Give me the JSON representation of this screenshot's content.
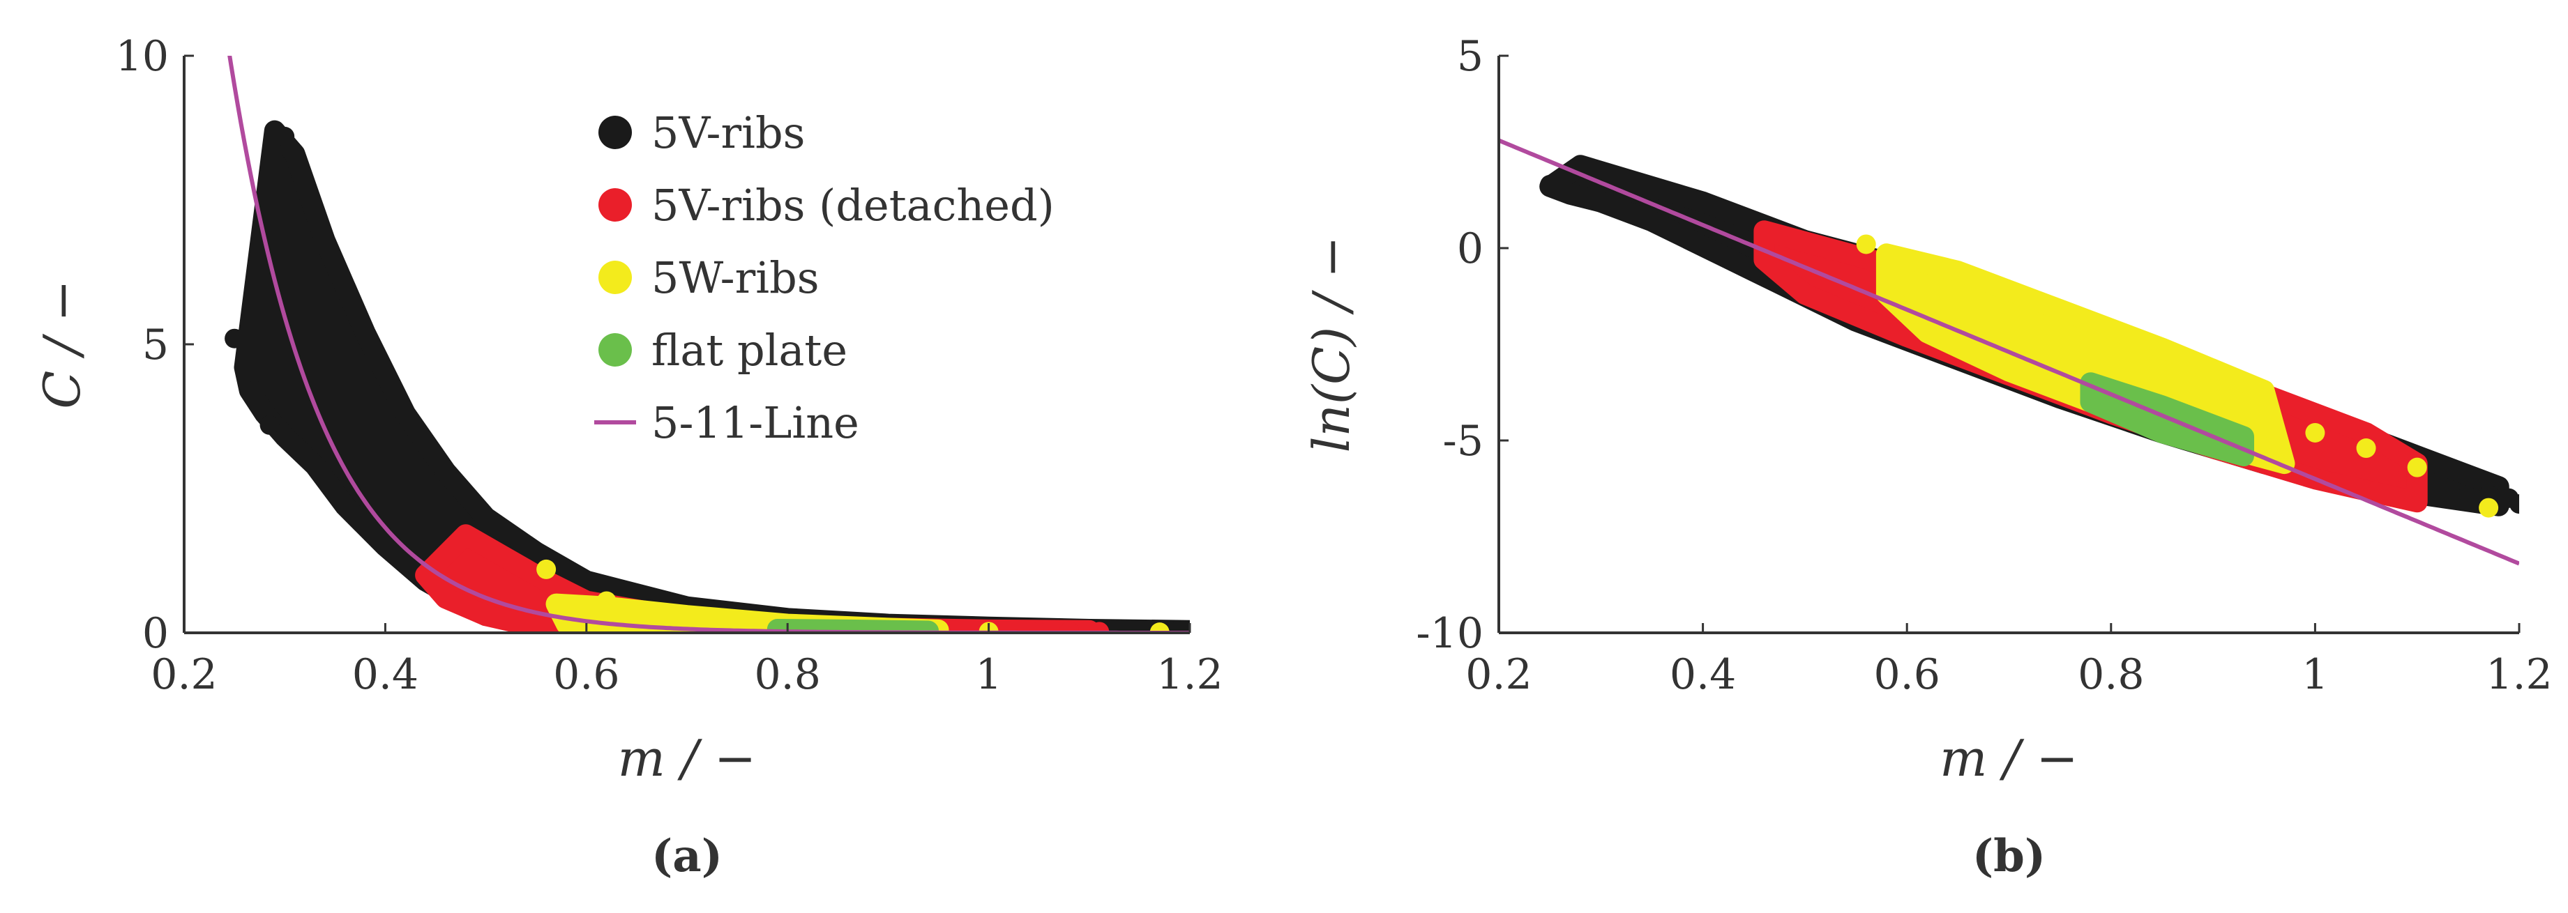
{
  "colors": {
    "black_series": "#1a1a1a",
    "red_series": "#ea1f2a",
    "yellow_series": "#f3eb1c",
    "green_series": "#6abf4b",
    "fit_line": "#b14a9e",
    "axis": "#333333"
  },
  "chart_data": [
    {
      "id": "a",
      "type": "scatter",
      "caption": "(a)",
      "xlabel": "m / −",
      "ylabel": "C / −",
      "xlim": [
        0.2,
        1.2
      ],
      "ylim": [
        0,
        10
      ],
      "x_ticks": [
        0.2,
        0.4,
        0.6,
        0.8,
        1.0,
        1.2
      ],
      "x_tick_labels": [
        "0.2",
        "0.4",
        "0.6",
        "0.8",
        "1",
        "1.2"
      ],
      "y_ticks": [
        0,
        5,
        10
      ],
      "y_tick_labels": [
        "0",
        "5",
        "10"
      ],
      "grid": false,
      "legend_placement": "top-right",
      "series": [
        {
          "name": "5V-ribs",
          "color": "#1a1a1a",
          "marker": "circle",
          "band_upper": [
            [
              0.29,
              8.7
            ],
            [
              0.31,
              8.3
            ],
            [
              0.34,
              6.8
            ],
            [
              0.38,
              5.2
            ],
            [
              0.42,
              3.8
            ],
            [
              0.46,
              2.8
            ],
            [
              0.5,
              2.0
            ],
            [
              0.55,
              1.4
            ],
            [
              0.6,
              0.9
            ],
            [
              0.7,
              0.45
            ],
            [
              0.8,
              0.25
            ],
            [
              0.9,
              0.15
            ],
            [
              1.0,
              0.1
            ],
            [
              1.1,
              0.06
            ],
            [
              1.2,
              0.04
            ]
          ],
          "band_lower": [
            [
              1.2,
              0.0
            ],
            [
              1.0,
              0.0
            ],
            [
              0.8,
              0.0
            ],
            [
              0.6,
              0.05
            ],
            [
              0.5,
              0.3
            ],
            [
              0.44,
              0.9
            ],
            [
              0.4,
              1.5
            ],
            [
              0.36,
              2.2
            ],
            [
              0.33,
              2.9
            ],
            [
              0.3,
              3.4
            ],
            [
              0.28,
              3.8
            ],
            [
              0.265,
              4.2
            ],
            [
              0.26,
              4.6
            ]
          ],
          "points": [
            [
              0.25,
              5.1
            ],
            [
              0.27,
              4.2
            ],
            [
              0.285,
              3.6
            ],
            [
              0.3,
              8.6
            ],
            [
              1.2,
              0.01
            ],
            [
              1.18,
              0.02
            ],
            [
              1.15,
              0.02
            ]
          ]
        },
        {
          "name": "5V-ribs (detached)",
          "color": "#ea1f2a",
          "marker": "circle",
          "band_upper": [
            [
              0.44,
              1.0
            ],
            [
              0.48,
              1.7
            ],
            [
              0.52,
              1.3
            ],
            [
              0.56,
              0.9
            ],
            [
              0.6,
              0.55
            ],
            [
              0.7,
              0.25
            ],
            [
              0.8,
              0.12
            ],
            [
              0.9,
              0.08
            ],
            [
              1.0,
              0.05
            ],
            [
              1.1,
              0.04
            ]
          ],
          "band_lower": [
            [
              1.1,
              0.0
            ],
            [
              1.0,
              0.0
            ],
            [
              0.8,
              0.0
            ],
            [
              0.6,
              0.02
            ],
            [
              0.55,
              0.1
            ],
            [
              0.5,
              0.3
            ],
            [
              0.46,
              0.6
            ]
          ],
          "points": [
            [
              1.05,
              0.02
            ],
            [
              1.08,
              0.03
            ],
            [
              1.11,
              0.02
            ]
          ]
        },
        {
          "name": "5W-ribs",
          "color": "#f3eb1c",
          "marker": "circle",
          "band_upper": [
            [
              0.57,
              0.5
            ],
            [
              0.62,
              0.45
            ],
            [
              0.7,
              0.3
            ],
            [
              0.8,
              0.15
            ],
            [
              0.9,
              0.08
            ],
            [
              0.95,
              0.05
            ]
          ],
          "band_lower": [
            [
              0.95,
              0.0
            ],
            [
              0.85,
              0.0
            ],
            [
              0.75,
              0.02
            ],
            [
              0.65,
              0.05
            ],
            [
              0.58,
              0.15
            ]
          ],
          "points": [
            [
              0.56,
              1.1
            ],
            [
              0.62,
              0.55
            ],
            [
              1.0,
              0.02
            ],
            [
              1.17,
              0.01
            ]
          ]
        },
        {
          "name": "flat plate",
          "color": "#6abf4b",
          "marker": "circle",
          "band_upper": [
            [
              0.79,
              0.06
            ],
            [
              0.86,
              0.05
            ],
            [
              0.94,
              0.03
            ]
          ],
          "band_lower": [
            [
              0.94,
              0.0
            ],
            [
              0.86,
              0.0
            ],
            [
              0.79,
              0.01
            ]
          ],
          "points": []
        },
        {
          "name": "5-11-Line",
          "color": "#b14a9e",
          "marker": "line",
          "formula": "C = exp(5 - 11 m)",
          "line_intercept": 5,
          "line_slope": -11
        }
      ]
    },
    {
      "id": "b",
      "type": "scatter",
      "caption": "(b)",
      "xlabel": "m / −",
      "ylabel": "ln(C) / −",
      "xlim": [
        0.2,
        1.2
      ],
      "ylim": [
        -10,
        5
      ],
      "x_ticks": [
        0.2,
        0.4,
        0.6,
        0.8,
        1.0,
        1.2
      ],
      "x_tick_labels": [
        "0.2",
        "0.4",
        "0.6",
        "0.8",
        "1",
        "1.2"
      ],
      "y_ticks": [
        -10,
        -5,
        0,
        5
      ],
      "y_tick_labels": [
        "-10",
        "-5",
        "0",
        "5"
      ],
      "grid": false,
      "series": [
        {
          "name": "5V-ribs",
          "color": "#1a1a1a",
          "marker": "circle",
          "band_upper": [
            [
              0.28,
              2.15
            ],
            [
              0.4,
              1.2
            ],
            [
              0.5,
              0.2
            ],
            [
              0.6,
              -0.5
            ],
            [
              0.7,
              -1.4
            ],
            [
              0.8,
              -2.4
            ],
            [
              0.9,
              -3.4
            ],
            [
              1.0,
              -4.4
            ],
            [
              1.1,
              -5.4
            ],
            [
              1.18,
              -6.2
            ]
          ],
          "band_lower": [
            [
              1.18,
              -6.7
            ],
            [
              1.05,
              -6.2
            ],
            [
              0.95,
              -5.6
            ],
            [
              0.85,
              -4.8
            ],
            [
              0.75,
              -3.9
            ],
            [
              0.65,
              -2.9
            ],
            [
              0.55,
              -1.9
            ],
            [
              0.45,
              -0.6
            ],
            [
              0.35,
              0.7
            ],
            [
              0.3,
              1.2
            ],
            [
              0.27,
              1.4
            ],
            [
              0.25,
              1.6
            ]
          ],
          "points": [
            [
              0.25,
              1.65
            ],
            [
              1.19,
              -6.5
            ],
            [
              1.2,
              -6.65
            ],
            [
              1.17,
              -6.4
            ]
          ]
        },
        {
          "name": "5V-ribs (detached)",
          "color": "#ea1f2a",
          "marker": "circle",
          "band_upper": [
            [
              0.46,
              0.45
            ],
            [
              0.55,
              -0.2
            ],
            [
              0.65,
              -0.9
            ],
            [
              0.75,
              -1.8
            ],
            [
              0.85,
              -2.8
            ],
            [
              0.95,
              -3.8
            ],
            [
              1.05,
              -4.8
            ],
            [
              1.1,
              -5.6
            ]
          ],
          "band_lower": [
            [
              1.1,
              -6.6
            ],
            [
              1.0,
              -6.0
            ],
            [
              0.9,
              -5.2
            ],
            [
              0.8,
              -4.3
            ],
            [
              0.7,
              -3.3
            ],
            [
              0.6,
              -2.3
            ],
            [
              0.5,
              -1.2
            ],
            [
              0.46,
              -0.3
            ]
          ],
          "points": []
        },
        {
          "name": "5W-ribs",
          "color": "#f3eb1c",
          "marker": "circle",
          "band_upper": [
            [
              0.58,
              -0.15
            ],
            [
              0.65,
              -0.6
            ],
            [
              0.75,
              -1.6
            ],
            [
              0.85,
              -2.6
            ],
            [
              0.95,
              -3.7
            ]
          ],
          "band_lower": [
            [
              0.97,
              -5.6
            ],
            [
              0.9,
              -5.1
            ],
            [
              0.8,
              -4.2
            ],
            [
              0.7,
              -3.2
            ],
            [
              0.62,
              -2.2
            ],
            [
              0.58,
              -1.2
            ]
          ],
          "points": [
            [
              0.56,
              0.1
            ],
            [
              1.0,
              -4.8
            ],
            [
              1.05,
              -5.2
            ],
            [
              1.1,
              -5.7
            ],
            [
              1.17,
              -6.75
            ]
          ]
        },
        {
          "name": "flat plate",
          "color": "#6abf4b",
          "marker": "circle",
          "band_upper": [
            [
              0.78,
              -3.5
            ],
            [
              0.85,
              -4.1
            ],
            [
              0.93,
              -4.9
            ]
          ],
          "band_lower": [
            [
              0.93,
              -5.4
            ],
            [
              0.85,
              -4.8
            ],
            [
              0.78,
              -4.0
            ]
          ],
          "points": []
        },
        {
          "name": "5-11-Line",
          "color": "#b14a9e",
          "marker": "line",
          "formula": "ln(C) = 5 - 11 m",
          "line_intercept": 5,
          "line_slope": -11
        }
      ]
    }
  ]
}
